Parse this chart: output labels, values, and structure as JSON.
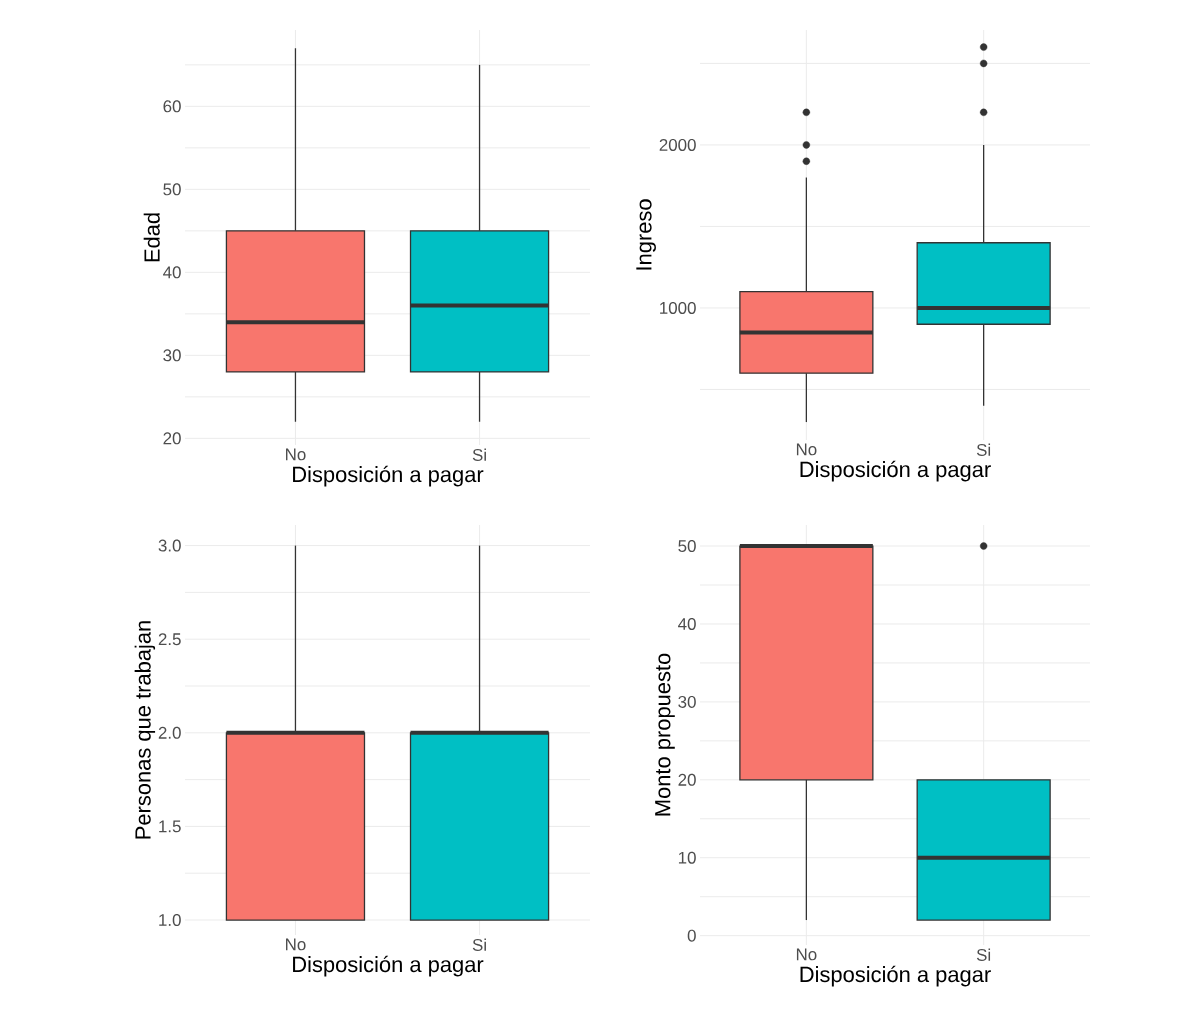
{
  "chart_data": [
    {
      "type": "box",
      "categories": [
        "No",
        "Si"
      ],
      "xlabel": "Disposición a pagar",
      "ylabel": "Edad",
      "colors": [
        "#f8766d",
        "#00bfc4"
      ],
      "grid": true,
      "ylim": [
        19.2,
        69.2
      ],
      "yticks": [
        20,
        {
          "value": 25,
          "label": null
        },
        30,
        {
          "value": 35,
          "label": null
        },
        40,
        {
          "value": 45,
          "label": null
        },
        50,
        {
          "value": 55,
          "label": null
        },
        60,
        {
          "value": 65,
          "label": null
        }
      ],
      "boxes": [
        {
          "low": 22,
          "q1": 28,
          "median": 34,
          "q3": 45,
          "high": 67
        },
        {
          "low": 22,
          "q1": 28,
          "median": 36,
          "q3": 45,
          "high": 65
        }
      ]
    },
    {
      "type": "box",
      "categories": [
        "No",
        "Si"
      ],
      "xlabel": "Disposición a pagar",
      "ylabel": "Ingreso",
      "colors": [
        "#f8766d",
        "#00bfc4"
      ],
      "grid": true,
      "ylim": [
        190,
        2705
      ],
      "yticks": [
        {
          "value": 500,
          "label": null
        },
        1000,
        {
          "value": 1500,
          "label": null
        },
        2000,
        {
          "value": 2500,
          "label": null
        }
      ],
      "boxes": [
        {
          "low": 300,
          "q1": 600,
          "median": 850,
          "q3": 1100,
          "high": 1800,
          "outliers": [
            1900,
            2000,
            2200
          ]
        },
        {
          "low": 400,
          "q1": 900,
          "median": 1000,
          "q3": 1400,
          "high": 2000,
          "outliers": [
            2200,
            2500,
            2600
          ]
        }
      ]
    },
    {
      "type": "box",
      "categories": [
        "No",
        "Si"
      ],
      "xlabel": "Disposición a pagar",
      "ylabel": "Personas que trabajan",
      "colors": [
        "#f8766d",
        "#00bfc4"
      ],
      "grid": true,
      "ylim": [
        0.92,
        3.11
      ],
      "yticks": [
        {
          "value": 1,
          "label": "1.0"
        },
        {
          "value": 1.25,
          "label": null
        },
        1.5,
        {
          "value": 1.75,
          "label": null
        },
        {
          "value": 2,
          "label": "2.0"
        },
        {
          "value": 2.25,
          "label": null
        },
        2.5,
        {
          "value": 2.75,
          "label": null
        },
        {
          "value": 3,
          "label": "3.0"
        }
      ],
      "boxes": [
        {
          "low": 1,
          "q1": 1,
          "median": 2,
          "q3": 2,
          "high": 3
        },
        {
          "low": 1,
          "q1": 1,
          "median": 2,
          "q3": 2,
          "high": 3
        }
      ]
    },
    {
      "type": "box",
      "categories": [
        "No",
        "Si"
      ],
      "xlabel": "Disposición a pagar",
      "ylabel": "Monto propuesto",
      "colors": [
        "#f8766d",
        "#00bfc4"
      ],
      "grid": true,
      "ylim": [
        -1.2,
        52.7
      ],
      "yticks": [
        0,
        {
          "value": 5,
          "label": null
        },
        10,
        {
          "value": 15,
          "label": null
        },
        20,
        {
          "value": 25,
          "label": null
        },
        30,
        {
          "value": 35,
          "label": null
        },
        40,
        {
          "value": 45,
          "label": null
        },
        50
      ],
      "boxes": [
        {
          "low": 2,
          "q1": 20,
          "median": 50,
          "q3": 50,
          "high": 50
        },
        {
          "low": 2,
          "q1": 2,
          "median": 10,
          "q3": 20,
          "high": 20,
          "outliers": [
            50
          ]
        }
      ]
    }
  ]
}
